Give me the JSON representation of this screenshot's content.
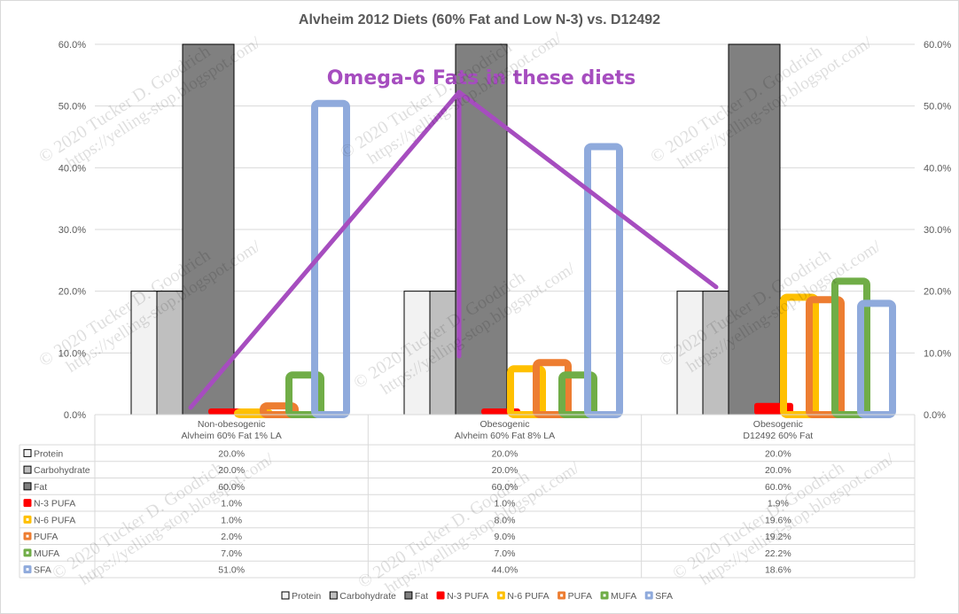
{
  "chart_data": {
    "type": "bar",
    "title": "Alvheim 2012 Diets (60% Fat and Low N-3) vs. D12492",
    "annotation": "Omega-6 Fats in these diets",
    "watermark": {
      "copyright": "© 2020 Tucker D. Goodrich",
      "url": "https://yelling-stop.blogspot.com/"
    },
    "ylim": [
      0,
      60
    ],
    "yticks": [
      0,
      10,
      20,
      30,
      40,
      50,
      60
    ],
    "ytick_labels": [
      "0.0%",
      "10.0%",
      "20.0%",
      "30.0%",
      "40.0%",
      "50.0%",
      "60.0%"
    ],
    "grid": true,
    "legend_position": "bottom",
    "categories": [
      [
        "Non-obesogenic",
        "Alvheim 60% Fat 1% LA"
      ],
      [
        "Obesogenic",
        "Alvheim 60% Fat 8% LA"
      ],
      [
        "Obesogenic",
        "D12492 60% Fat"
      ]
    ],
    "series": [
      {
        "name": "Protein",
        "values": [
          20.0,
          20.0,
          20.0
        ],
        "labels": [
          "20.0%",
          "20.0%",
          "20.0%"
        ],
        "color": "#f2f2f2",
        "stroke": "#000000",
        "style": "solid"
      },
      {
        "name": "Carbohydrate",
        "values": [
          20.0,
          20.0,
          20.0
        ],
        "labels": [
          "20.0%",
          "20.0%",
          "20.0%"
        ],
        "color": "#bfbfbf",
        "stroke": "#000000",
        "style": "solid"
      },
      {
        "name": "Fat",
        "values": [
          60.0,
          60.0,
          60.0
        ],
        "labels": [
          "60.0%",
          "60.0%",
          "60.0%"
        ],
        "color": "#808080",
        "stroke": "#000000",
        "style": "solid"
      },
      {
        "name": "N-3 PUFA",
        "values": [
          1.0,
          1.0,
          1.9
        ],
        "labels": [
          "1.0%",
          "1.0%",
          "1.9%"
        ],
        "color": "#ff0000",
        "style": "filled"
      },
      {
        "name": "N-6 PUFA",
        "values": [
          1.0,
          8.0,
          19.6
        ],
        "labels": [
          "1.0%",
          "8.0%",
          "19.6%"
        ],
        "color": "#ffc000",
        "style": "outline"
      },
      {
        "name": "PUFA",
        "values": [
          2.0,
          9.0,
          19.2
        ],
        "labels": [
          "2.0%",
          "9.0%",
          "19.2%"
        ],
        "color": "#ed7d31",
        "style": "outline"
      },
      {
        "name": "MUFA",
        "values": [
          7.0,
          7.0,
          22.2
        ],
        "labels": [
          "7.0%",
          "7.0%",
          "22.2%"
        ],
        "color": "#70ad47",
        "style": "outline"
      },
      {
        "name": "SFA",
        "values": [
          51.0,
          44.0,
          18.6
        ],
        "labels": [
          "51.0%",
          "44.0%",
          "18.6%"
        ],
        "color": "#8faadc",
        "style": "outline"
      }
    ]
  }
}
